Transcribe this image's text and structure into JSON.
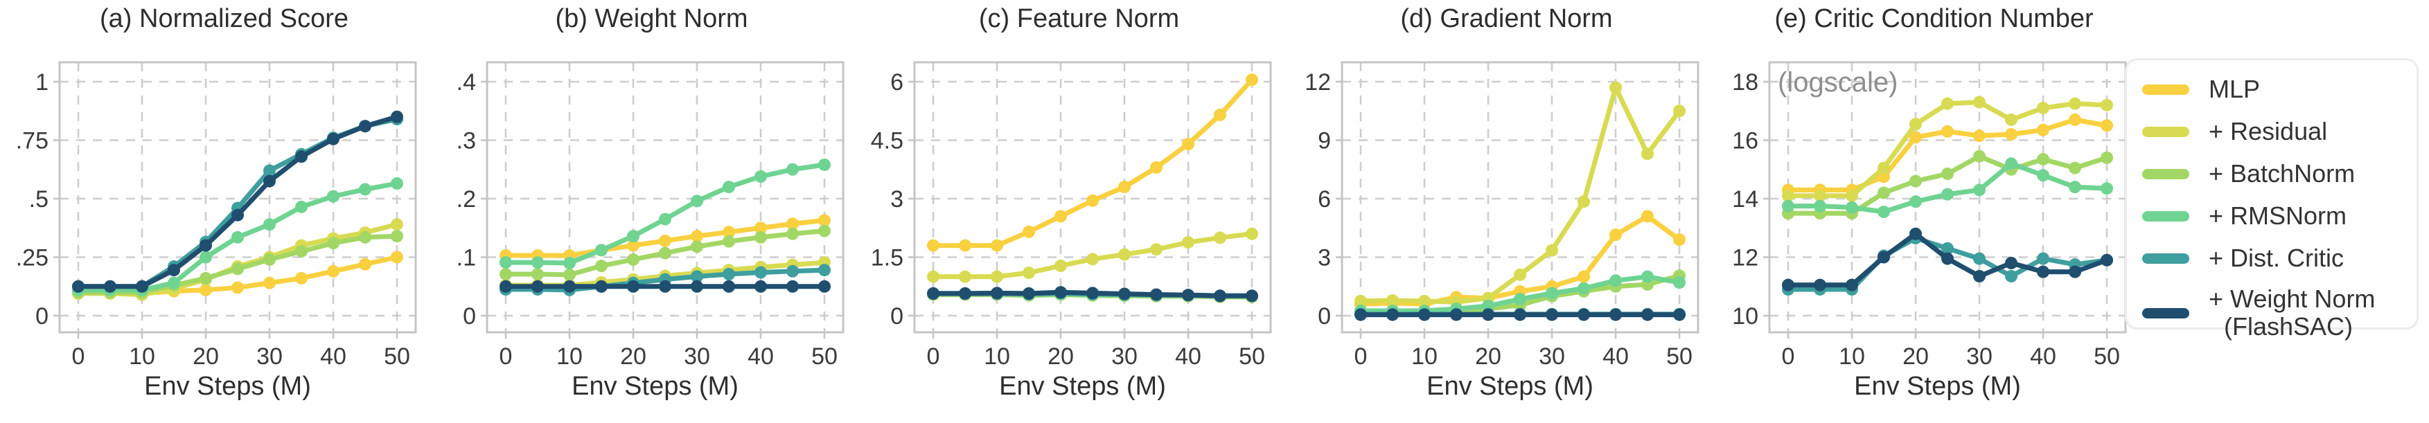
{
  "legend": {
    "items": [
      {
        "label": "MLP",
        "color": "#F9D03F"
      },
      {
        "label": "+ Residual",
        "color": "#D8DB52"
      },
      {
        "label": "+ BatchNorm",
        "color": "#A3D765"
      },
      {
        "label": "+ RMSNorm",
        "color": "#6FD392"
      },
      {
        "label": "+ Dist. Critic",
        "color": "#3F9E9E"
      },
      {
        "label": "+ Weight Norm",
        "label2": "(FlashSAC)",
        "color": "#1F4E6F"
      }
    ]
  },
  "style": {
    "grid_color": "#cdcdcd",
    "spine_color": "#c4c4c4",
    "tick_text_color": "#3a3a3a",
    "annotation_color": "#8e8e8e"
  },
  "chart_data": [
    {
      "type": "line",
      "title": "(a) Normalized Score",
      "xlabel": "Env Steps (M)",
      "grid": true,
      "x": [
        0,
        5,
        10,
        15,
        20,
        25,
        30,
        35,
        40,
        45,
        50
      ],
      "x_ticks": [
        0,
        10,
        20,
        30,
        40,
        50
      ],
      "y_ticks": [
        {
          "v": 0,
          "label": "0"
        },
        {
          "v": 0.25,
          "label": ".25"
        },
        {
          "v": 0.5,
          "label": ".5"
        },
        {
          "v": 0.75,
          "label": ".75"
        },
        {
          "v": 1,
          "label": "1"
        }
      ],
      "series": [
        {
          "name": "MLP",
          "values": [
            0.1,
            0.1,
            0.095,
            0.105,
            0.11,
            0.12,
            0.14,
            0.16,
            0.19,
            0.22,
            0.25
          ]
        },
        {
          "name": "+ Residual",
          "values": [
            0.095,
            0.095,
            0.09,
            0.115,
            0.155,
            0.21,
            0.25,
            0.3,
            0.33,
            0.355,
            0.39
          ]
        },
        {
          "name": "+ BatchNorm",
          "values": [
            0.1,
            0.1,
            0.1,
            0.13,
            0.16,
            0.2,
            0.24,
            0.275,
            0.31,
            0.335,
            0.34
          ]
        },
        {
          "name": "+ RMSNorm",
          "values": [
            0.11,
            0.11,
            0.11,
            0.14,
            0.25,
            0.335,
            0.39,
            0.465,
            0.51,
            0.54,
            0.565
          ]
        },
        {
          "name": "+ Dist. Critic",
          "values": [
            0.125,
            0.125,
            0.125,
            0.21,
            0.315,
            0.46,
            0.62,
            0.69,
            0.76,
            0.81,
            0.84
          ]
        },
        {
          "name": "+ Weight Norm (FlashSAC)",
          "values": [
            0.125,
            0.125,
            0.125,
            0.195,
            0.3,
            0.43,
            0.575,
            0.68,
            0.755,
            0.81,
            0.85
          ]
        }
      ]
    },
    {
      "type": "line",
      "title": "(b) Weight Norm",
      "xlabel": "Env Steps (M)",
      "grid": true,
      "x": [
        0,
        5,
        10,
        15,
        20,
        25,
        30,
        35,
        40,
        45,
        50
      ],
      "x_ticks": [
        0,
        10,
        20,
        30,
        40,
        50
      ],
      "y_ticks": [
        {
          "v": 0,
          "label": "0"
        },
        {
          "v": 0.1,
          "label": ".1"
        },
        {
          "v": 0.2,
          "label": ".2"
        },
        {
          "v": 0.3,
          "label": ".3"
        },
        {
          "v": 0.4,
          "label": ".4"
        }
      ],
      "series": [
        {
          "name": "MLP",
          "values": [
            0.103,
            0.103,
            0.103,
            0.112,
            0.12,
            0.128,
            0.136,
            0.143,
            0.15,
            0.157,
            0.163
          ]
        },
        {
          "name": "+ Residual",
          "values": [
            0.052,
            0.052,
            0.052,
            0.057,
            0.062,
            0.068,
            0.073,
            0.078,
            0.083,
            0.087,
            0.091
          ]
        },
        {
          "name": "+ BatchNorm",
          "values": [
            0.071,
            0.071,
            0.07,
            0.085,
            0.096,
            0.107,
            0.118,
            0.127,
            0.134,
            0.14,
            0.145
          ]
        },
        {
          "name": "+ RMSNorm",
          "values": [
            0.091,
            0.091,
            0.09,
            0.112,
            0.136,
            0.165,
            0.196,
            0.22,
            0.238,
            0.25,
            0.258
          ]
        },
        {
          "name": "+ Dist. Critic",
          "values": [
            0.045,
            0.045,
            0.044,
            0.05,
            0.056,
            0.062,
            0.067,
            0.071,
            0.074,
            0.076,
            0.078
          ]
        },
        {
          "name": "+ Weight Norm (FlashSAC)",
          "values": [
            0.05,
            0.05,
            0.05,
            0.05,
            0.05,
            0.05,
            0.05,
            0.05,
            0.05,
            0.05,
            0.05
          ]
        }
      ]
    },
    {
      "type": "line",
      "title": "(c) Feature Norm",
      "xlabel": "Env Steps (M)",
      "grid": true,
      "x": [
        0,
        5,
        10,
        15,
        20,
        25,
        30,
        35,
        40,
        45,
        50
      ],
      "x_ticks": [
        0,
        10,
        20,
        30,
        40,
        50
      ],
      "y_ticks": [
        {
          "v": 0,
          "label": "0"
        },
        {
          "v": 1.5,
          "label": "1.5"
        },
        {
          "v": 3,
          "label": "3"
        },
        {
          "v": 4.5,
          "label": "4.5"
        },
        {
          "v": 6,
          "label": "6"
        }
      ],
      "series": [
        {
          "name": "MLP",
          "values": [
            1.8,
            1.8,
            1.8,
            2.15,
            2.55,
            2.95,
            3.3,
            3.8,
            4.4,
            5.15,
            6.05
          ]
        },
        {
          "name": "+ Residual",
          "values": [
            1.0,
            1.0,
            1.0,
            1.1,
            1.28,
            1.45,
            1.57,
            1.7,
            1.88,
            2.0,
            2.1
          ]
        },
        {
          "name": "+ BatchNorm",
          "values": [
            0.54,
            0.54,
            0.54,
            0.52,
            0.54,
            0.52,
            0.51,
            0.5,
            0.5,
            0.48,
            0.48
          ]
        },
        {
          "name": "+ RMSNorm",
          "values": [
            0.56,
            0.56,
            0.56,
            0.54,
            0.56,
            0.54,
            0.53,
            0.52,
            0.52,
            0.5,
            0.5
          ]
        },
        {
          "name": "+ Dist. Critic",
          "values": [
            0.57,
            0.57,
            0.57,
            0.56,
            0.58,
            0.56,
            0.55,
            0.54,
            0.53,
            0.51,
            0.51
          ]
        },
        {
          "name": "+ Weight Norm (FlashSAC)",
          "values": [
            0.57,
            0.57,
            0.58,
            0.57,
            0.6,
            0.58,
            0.56,
            0.54,
            0.53,
            0.51,
            0.51
          ]
        }
      ]
    },
    {
      "type": "line",
      "title": "(d) Gradient Norm",
      "xlabel": "Env Steps (M)",
      "grid": true,
      "x": [
        0,
        5,
        10,
        15,
        20,
        25,
        30,
        35,
        40,
        45,
        50
      ],
      "x_ticks": [
        0,
        10,
        20,
        30,
        40,
        50
      ],
      "y_ticks": [
        {
          "v": 0,
          "label": "0"
        },
        {
          "v": 3,
          "label": "3"
        },
        {
          "v": 6,
          "label": "6"
        },
        {
          "v": 9,
          "label": "9"
        },
        {
          "v": 12,
          "label": "12"
        }
      ],
      "series": [
        {
          "name": "MLP",
          "values": [
            0.6,
            0.65,
            0.6,
            0.95,
            0.9,
            1.25,
            1.5,
            2.0,
            4.15,
            5.1,
            3.9
          ]
        },
        {
          "name": "+ Residual",
          "values": [
            0.75,
            0.78,
            0.75,
            0.7,
            0.9,
            2.1,
            3.35,
            5.85,
            11.7,
            8.3,
            10.5
          ]
        },
        {
          "name": "+ BatchNorm",
          "values": [
            0.18,
            0.18,
            0.18,
            0.18,
            0.35,
            0.55,
            1.0,
            1.25,
            1.5,
            1.6,
            2.05
          ]
        },
        {
          "name": "+ RMSNorm",
          "values": [
            0.25,
            0.25,
            0.25,
            0.35,
            0.5,
            0.85,
            1.15,
            1.4,
            1.8,
            2.0,
            1.7
          ]
        },
        {
          "name": "+ Dist. Critic",
          "values": [
            0.08,
            0.08,
            0.08,
            0.08,
            0.08,
            0.08,
            0.08,
            0.08,
            0.08,
            0.08,
            0.08
          ]
        },
        {
          "name": "+ Weight Norm (FlashSAC)",
          "values": [
            0.05,
            0.05,
            0.05,
            0.05,
            0.05,
            0.05,
            0.05,
            0.05,
            0.05,
            0.05,
            0.05
          ]
        }
      ]
    },
    {
      "type": "line",
      "title": "(e) Critic Condition Number",
      "xlabel": "Env Steps (M)",
      "annotation": "(logscale)",
      "grid": true,
      "x": [
        0,
        5,
        10,
        15,
        20,
        25,
        30,
        35,
        40,
        45,
        50
      ],
      "x_ticks": [
        0,
        10,
        20,
        30,
        40,
        50
      ],
      "y_ticks": [
        {
          "v": 10,
          "label": "10"
        },
        {
          "v": 12,
          "label": "12"
        },
        {
          "v": 14,
          "label": "14"
        },
        {
          "v": 16,
          "label": "16"
        },
        {
          "v": 18,
          "label": "18"
        }
      ],
      "series": [
        {
          "name": "MLP",
          "values": [
            14.3,
            14.3,
            14.3,
            14.75,
            16.1,
            16.3,
            16.15,
            16.2,
            16.35,
            16.7,
            16.5
          ]
        },
        {
          "name": "+ Residual",
          "values": [
            14.1,
            14.1,
            14.1,
            15.05,
            16.55,
            17.25,
            17.3,
            16.7,
            17.1,
            17.25,
            17.2
          ]
        },
        {
          "name": "+ BatchNorm",
          "values": [
            13.5,
            13.5,
            13.5,
            14.2,
            14.6,
            14.85,
            15.45,
            15.0,
            15.35,
            15.05,
            15.4
          ]
        },
        {
          "name": "+ RMSNorm",
          "values": [
            13.75,
            13.75,
            13.7,
            13.55,
            13.9,
            14.15,
            14.3,
            15.2,
            14.8,
            14.4,
            14.35
          ]
        },
        {
          "name": "+ Dist. Critic",
          "values": [
            10.9,
            10.9,
            10.9,
            12.05,
            12.65,
            12.3,
            11.95,
            11.35,
            11.95,
            11.75,
            11.9
          ]
        },
        {
          "name": "+ Weight Norm (FlashSAC)",
          "values": [
            11.05,
            11.05,
            11.05,
            12.0,
            12.8,
            11.95,
            11.35,
            11.8,
            11.5,
            11.5,
            11.9
          ]
        }
      ]
    }
  ]
}
